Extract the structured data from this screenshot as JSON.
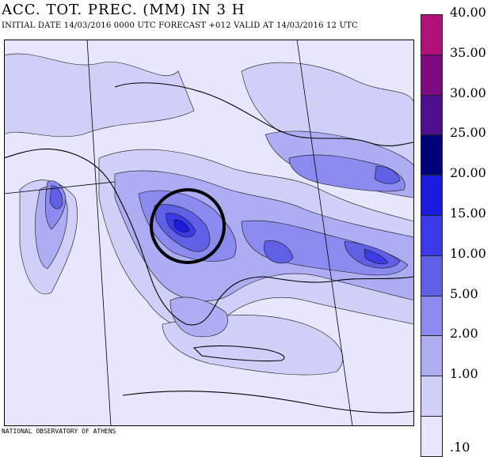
{
  "header": {
    "title": "ACC. TOT. PREC. (MM) IN 3 H",
    "subtitle": "INITIAL DATE 14/03/2016   0000 UTC FORECAST +012 VALID AT  14/03/2016  12 UTC"
  },
  "footer": {
    "text": "NATIONAL OBSERVATORY OF ATHENS"
  },
  "legend": {
    "items": [
      {
        "label": "40.00",
        "color": "#b0127a"
      },
      {
        "label": "35.00",
        "color": "#7e0a82"
      },
      {
        "label": "30.00",
        "color": "#4e0f8c"
      },
      {
        "label": "25.00",
        "color": "#00007a"
      },
      {
        "label": "20.00",
        "color": "#1b1bdc"
      },
      {
        "label": "15.00",
        "color": "#3b3ae8"
      },
      {
        "label": "10.00",
        "color": "#6060e6"
      },
      {
        "label": "5.00",
        "color": "#8a8aef"
      },
      {
        "label": "2.00",
        "color": "#adadf4"
      },
      {
        "label": "1.00",
        "color": "#cfcff8"
      },
      {
        "label": ".10",
        "color": "#e6e6fc"
      }
    ]
  },
  "map": {
    "highlight_circle": "black-outline-circle",
    "background_color": "#e6e6fc"
  }
}
